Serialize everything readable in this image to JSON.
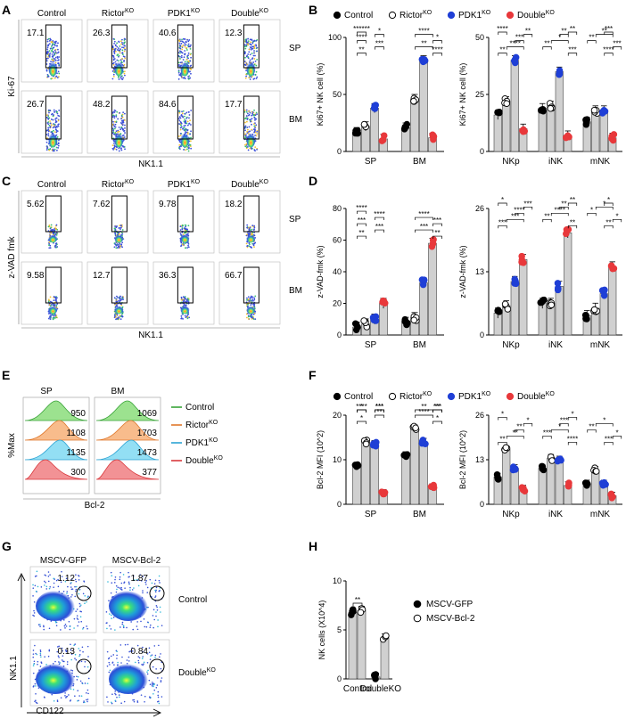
{
  "panel_letters": {
    "A": "A",
    "B": "B",
    "C": "C",
    "D": "D",
    "E": "E",
    "F": "F",
    "G": "G",
    "H": "H"
  },
  "colors": {
    "control": "#000000",
    "rictor": "#ffffff",
    "pdk1": "#1f3fd6",
    "double": "#e8383b",
    "bar": "#d0d0d0"
  },
  "flow_A": {
    "columns": [
      "Control",
      "Rictor",
      "PDK1",
      "Double"
    ],
    "column_sup": [
      "",
      "KO",
      "KO",
      "KO"
    ],
    "rows": [
      "SP",
      "BM"
    ],
    "ylabel": "Ki-67",
    "xlabel": "NK1.1",
    "gate_values": [
      [
        "17.1",
        "26.3",
        "40.6",
        "12.3"
      ],
      [
        "26.7",
        "48.2",
        "84.6",
        "17.7"
      ]
    ]
  },
  "flow_C": {
    "columns": [
      "Control",
      "Rictor",
      "PDK1",
      "Double"
    ],
    "column_sup": [
      "",
      "KO",
      "KO",
      "KO"
    ],
    "rows": [
      "SP",
      "BM"
    ],
    "ylabel": "z-VAD fmk",
    "xlabel": "NK1.1",
    "gate_values": [
      [
        "5.62",
        "7.62",
        "9.78",
        "18.2"
      ],
      [
        "9.58",
        "12.7",
        "36.3",
        "66.7"
      ]
    ]
  },
  "legend_BD": {
    "control": "Control",
    "rictor": "Rictor",
    "pdk1": "PDK1",
    "double": "Double",
    "sup": "KO"
  },
  "panel_E": {
    "tissues": [
      "SP",
      "BM"
    ],
    "ylabel": "%Max",
    "xlabel": "Bcl-2",
    "mfi": [
      [
        "950",
        "1108",
        "1135",
        "300"
      ],
      [
        "1069",
        "1703",
        "1473",
        "377"
      ]
    ],
    "legend": [
      "Control",
      "Rictor",
      "PDK1",
      "Double"
    ],
    "legend_sup": [
      "",
      "KO",
      "KO",
      "KO"
    ]
  },
  "flow_G": {
    "columns": [
      "MSCV-GFP",
      "MSCV-Bcl-2"
    ],
    "rows": [
      "Control",
      "Double"
    ],
    "row_sup": [
      "",
      "KO"
    ],
    "ylabel": "NK1.1",
    "xlabel": "CD122",
    "gate_values": [
      [
        "1.12",
        "1.87"
      ],
      [
        "0.13",
        "0.84"
      ]
    ]
  },
  "chart_data": [
    {
      "id": "B1",
      "type": "bar",
      "ylabel": "Ki67+ NK cell (%)",
      "ylim": [
        0,
        100
      ],
      "yticks": [
        "0",
        "50",
        "100"
      ],
      "categories": [
        "SP",
        "BM"
      ],
      "series": [
        {
          "name": "Control",
          "values": [
            17,
            21
          ]
        },
        {
          "name": "RictorKO",
          "values": [
            22,
            46
          ]
        },
        {
          "name": "PDK1KO",
          "values": [
            38,
            80
          ]
        },
        {
          "name": "DoubleKO",
          "values": [
            11,
            12
          ]
        }
      ],
      "sig": [
        "**",
        "****",
        "***",
        "**",
        "****",
        "*",
        "*",
        "****",
        "******"
      ]
    },
    {
      "id": "B2",
      "type": "bar",
      "ylabel": "Ki67+ NK cell (%)",
      "ylim": [
        0,
        50
      ],
      "yticks": [
        "0",
        "25",
        "50"
      ],
      "categories": [
        "NKp",
        "iNK",
        "mNK"
      ],
      "series": [
        {
          "name": "Control",
          "values": [
            16,
            19,
            13
          ]
        },
        {
          "name": "RictorKO",
          "values": [
            22,
            20,
            18
          ]
        },
        {
          "name": "PDK1KO",
          "values": [
            40,
            35,
            18
          ]
        },
        {
          "name": "DoubleKO",
          "values": [
            10,
            7,
            6
          ]
        }
      ],
      "sig": [
        "**",
        "***",
        "****",
        "****",
        "**",
        "***",
        "***",
        "*",
        "**",
        "**",
        "**",
        "**",
        "****",
        "**",
        "***"
      ]
    },
    {
      "id": "D1",
      "type": "bar",
      "ylabel": "z-VAD-fmk (%)",
      "ylim": [
        0,
        80
      ],
      "yticks": [
        "0",
        "20",
        "40",
        "60",
        "80"
      ],
      "categories": [
        "SP",
        "BM"
      ],
      "series": [
        {
          "name": "Control",
          "values": [
            5,
            8
          ]
        },
        {
          "name": "RictorKO",
          "values": [
            7,
            11
          ]
        },
        {
          "name": "PDK1KO",
          "values": [
            10,
            33
          ]
        },
        {
          "name": "DoubleKO",
          "values": [
            20,
            58
          ]
        }
      ],
      "sig": [
        "**",
        "**",
        "***",
        "***",
        "***",
        "***",
        "****",
        "****",
        "****"
      ]
    },
    {
      "id": "D2",
      "type": "bar",
      "ylabel": "z-VAD-fmk (%)",
      "ylim": [
        0,
        26
      ],
      "yticks": [
        "0",
        "13",
        "26"
      ],
      "categories": [
        "NKp",
        "iNK",
        "mNK"
      ],
      "series": [
        {
          "name": "Control",
          "values": [
            4.5,
            6.5,
            4
          ]
        },
        {
          "name": "RictorKO",
          "values": [
            6,
            6.5,
            5.5
          ]
        },
        {
          "name": "PDK1KO",
          "values": [
            11,
            10,
            8.5
          ]
        },
        {
          "name": "DoubleKO",
          "values": [
            15.5,
            21,
            14
          ]
        }
      ],
      "sig": [
        "***",
        "**",
        "**",
        "***",
        "**",
        "*",
        "****",
        "****",
        "*",
        "***",
        "**",
        "*",
        "*",
        "**",
        "*"
      ]
    },
    {
      "id": "F1",
      "type": "bar",
      "ylabel": "Bcl-2 MFI (10^2)",
      "ylim": [
        0,
        20
      ],
      "yticks": [
        "0",
        "10",
        "20"
      ],
      "categories": [
        "SP",
        "BM"
      ],
      "series": [
        {
          "name": "Control",
          "values": [
            8.5,
            11
          ]
        },
        {
          "name": "RictorKO",
          "values": [
            14,
            17
          ]
        },
        {
          "name": "PDK1KO",
          "values": [
            13.5,
            14
          ]
        },
        {
          "name": "DoubleKO",
          "values": [
            2.5,
            3.8
          ]
        }
      ],
      "sig": [
        "*",
        "*",
        "**",
        "****",
        "****",
        "***",
        "***",
        "**",
        "*",
        "**",
        "***"
      ]
    },
    {
      "id": "F2",
      "type": "bar",
      "ylabel": "Bcl-2 MFI (10^2)",
      "ylim": [
        0,
        26
      ],
      "yticks": [
        "0",
        "13",
        "26"
      ],
      "categories": [
        "NKp",
        "iNK",
        "mNK"
      ],
      "series": [
        {
          "name": "Control",
          "values": [
            8,
            10.5,
            6
          ]
        },
        {
          "name": "RictorKO",
          "values": [
            16,
            13.5,
            10
          ]
        },
        {
          "name": "PDK1KO",
          "values": [
            10.5,
            13,
            6
          ]
        },
        {
          "name": "DoubleKO",
          "values": [
            4.5,
            5.5,
            2.5
          ]
        }
      ],
      "sig": [
        "**",
        "****",
        "***",
        "**",
        "***",
        "*",
        "**",
        "*",
        "**",
        "*",
        "***",
        "*",
        "*",
        "*"
      ]
    },
    {
      "id": "H",
      "type": "bar",
      "ylabel": "NK cells (X10^4)",
      "ylim": [
        0,
        10
      ],
      "yticks": [
        "0",
        "5",
        "10"
      ],
      "categories": [
        "Control",
        "DoubleKO"
      ],
      "series": [
        {
          "name": "MSCV-GFP",
          "values": [
            6.8,
            0.2
          ]
        },
        {
          "name": "MSCV-Bcl-2",
          "values": [
            7,
            4.2
          ]
        }
      ],
      "sig": [
        "**"
      ],
      "legend": [
        "MSCV-GFP",
        "MSCV-Bcl-2"
      ]
    }
  ]
}
